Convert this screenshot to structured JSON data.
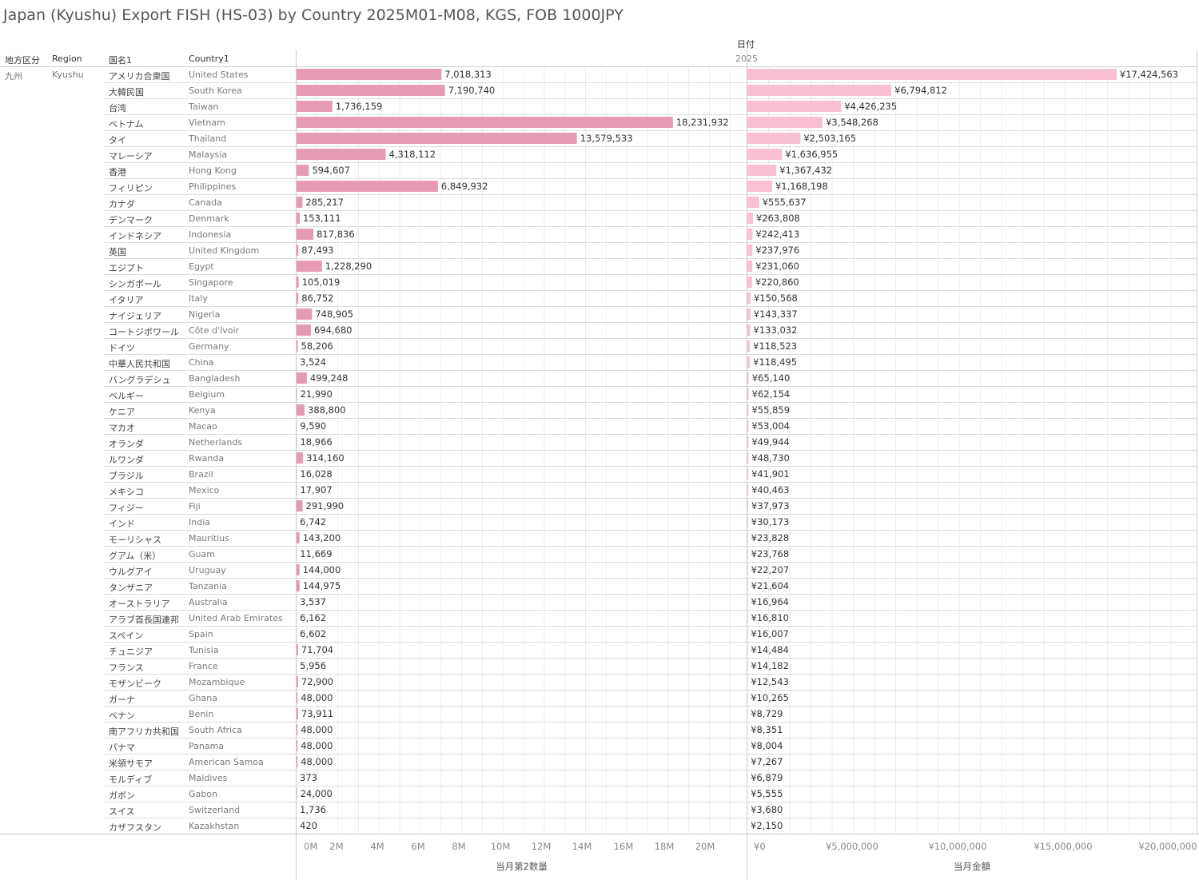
{
  "title": "Japan (Kyushu) Export FISH (HS-03) by Country 2025M01-M08, KGS, FOB 1000JPY",
  "headers": {
    "region_jp": "地方区分",
    "region_en": "Region",
    "country_jp": "国名1",
    "country_en": "Country1",
    "date": "日付",
    "year": "2025"
  },
  "region": {
    "jp": "九州",
    "en": "Kyushu"
  },
  "colors": {
    "qty_bar": "#e79ab4",
    "value_bar": "#f9bfd2",
    "grid": "#eeeeee",
    "divider": "#cccccc"
  },
  "chart_data": {
    "type": "bar",
    "orientation": "horizontal",
    "categories_jp": [
      "アメリカ合衆国",
      "大韓民国",
      "台湾",
      "ベトナム",
      "タイ",
      "マレーシア",
      "香港",
      "フィリピン",
      "カナダ",
      "デンマーク",
      "インドネシア",
      "英国",
      "エジプト",
      "シンガポール",
      "イタリア",
      "ナイジェリア",
      "コートジボワール",
      "ドイツ",
      "中華人民共和国",
      "バングラデシュ",
      "ベルギー",
      "ケニア",
      "マカオ",
      "オランダ",
      "ルワンダ",
      "ブラジル",
      "メキシコ",
      "フィジー",
      "インド",
      "モーリシャス",
      "グアム（米）",
      "ウルグアイ",
      "タンザニア",
      "オーストラリア",
      "アラブ首長国連邦",
      "スペイン",
      "チュニジア",
      "フランス",
      "モザンビーク",
      "ガーナ",
      "ベナン",
      "南アフリカ共和国",
      "パナマ",
      "米領サモア",
      "モルディブ",
      "ガボン",
      "スイス",
      "カザフスタン"
    ],
    "categories": [
      "United States",
      "South Korea",
      "Taiwan",
      "Vietnam",
      "Thailand",
      "Malaysia",
      "Hong Kong",
      "Philippines",
      "Canada",
      "Denmark",
      "Indonesia",
      "United Kingdom",
      "Egypt",
      "Singapore",
      "Italy",
      "Nigeria",
      "Côte d'Ivoir",
      "Germany",
      "China",
      "Bangladesh",
      "Belgium",
      "Kenya",
      "Macao",
      "Netherlands",
      "Rwanda",
      "Brazil",
      "Mexico",
      "Fiji",
      "India",
      "Mauritius",
      "Guam",
      "Uruguay",
      "Tanzania",
      "Australia",
      "United Arab Emirates",
      "Spain",
      "Tunisia",
      "France",
      "Mozambique",
      "Ghana",
      "Benin",
      "South Africa",
      "Panama",
      "American Samoa",
      "Maldives",
      "Gabon",
      "Switzerland",
      "Kazakhstan"
    ],
    "series": [
      {
        "name": "当月第2数量",
        "values": [
          7018313,
          7190740,
          1736159,
          18231932,
          13579533,
          4318112,
          594607,
          6849932,
          285217,
          153111,
          817836,
          87493,
          1228290,
          105019,
          86752,
          748905,
          694680,
          58206,
          3524,
          499248,
          21990,
          388800,
          9590,
          18966,
          314160,
          16028,
          17907,
          291990,
          6742,
          143200,
          11669,
          144000,
          144975,
          3537,
          6162,
          6602,
          71704,
          5956,
          72900,
          48000,
          73911,
          48000,
          48000,
          48000,
          373,
          24000,
          1736,
          420
        ],
        "labels": [
          "7,018,313",
          "7,190,740",
          "1,736,159",
          "18,231,932",
          "13,579,533",
          "4,318,112",
          "594,607",
          "6,849,932",
          "285,217",
          "153,111",
          "817,836",
          "87,493",
          "1,228,290",
          "105,019",
          "86,752",
          "748,905",
          "694,680",
          "58,206",
          "3,524",
          "499,248",
          "21,990",
          "388,800",
          "9,590",
          "18,966",
          "314,160",
          "16,028",
          "17,907",
          "291,990",
          "6,742",
          "143,200",
          "11,669",
          "144,000",
          "144,975",
          "3,537",
          "6,162",
          "6,602",
          "71,704",
          "5,956",
          "72,900",
          "48,000",
          "73,911",
          "48,000",
          "48,000",
          "48,000",
          "373",
          "24,000",
          "1,736",
          "420"
        ],
        "axis_title": "当月第2数量",
        "ticks": [
          "0M",
          "2M",
          "4M",
          "6M",
          "8M",
          "10M",
          "12M",
          "14M",
          "16M",
          "18M",
          "20M"
        ],
        "xlim": [
          0,
          21800000
        ]
      },
      {
        "name": "当月金額",
        "values": [
          17424563,
          6794812,
          4426235,
          3548268,
          2503165,
          1636955,
          1367432,
          1168198,
          555637,
          263808,
          242413,
          237976,
          231060,
          220860,
          150568,
          143337,
          133032,
          118523,
          118495,
          65140,
          62154,
          55859,
          53004,
          49944,
          48730,
          41901,
          40463,
          37973,
          30173,
          23828,
          23768,
          22207,
          21604,
          16964,
          16810,
          16007,
          14484,
          14182,
          12543,
          10265,
          8729,
          8351,
          8004,
          7267,
          6879,
          5555,
          3680,
          2150
        ],
        "labels": [
          "¥17,424,563",
          "¥6,794,812",
          "¥4,426,235",
          "¥3,548,268",
          "¥2,503,165",
          "¥1,636,955",
          "¥1,367,432",
          "¥1,168,198",
          "¥555,637",
          "¥263,808",
          "¥242,413",
          "¥237,976",
          "¥231,060",
          "¥220,860",
          "¥150,568",
          "¥143,337",
          "¥133,032",
          "¥118,523",
          "¥118,495",
          "¥65,140",
          "¥62,154",
          "¥55,859",
          "¥53,004",
          "¥49,944",
          "¥48,730",
          "¥41,901",
          "¥40,463",
          "¥37,973",
          "¥30,173",
          "¥23,828",
          "¥23,768",
          "¥22,207",
          "¥21,604",
          "¥16,964",
          "¥16,810",
          "¥16,007",
          "¥14,484",
          "¥14,182",
          "¥12,543",
          "¥10,265",
          "¥8,729",
          "¥8,351",
          "¥8,004",
          "¥7,267",
          "¥6,879",
          "¥5,555",
          "¥3,680",
          "¥2,150"
        ],
        "axis_title": "当月金額",
        "ticks": [
          "¥0",
          "¥5,000,000",
          "¥10,000,000",
          "¥15,000,000",
          "¥20,000,000"
        ],
        "xlim": [
          0,
          21200000
        ]
      }
    ]
  }
}
